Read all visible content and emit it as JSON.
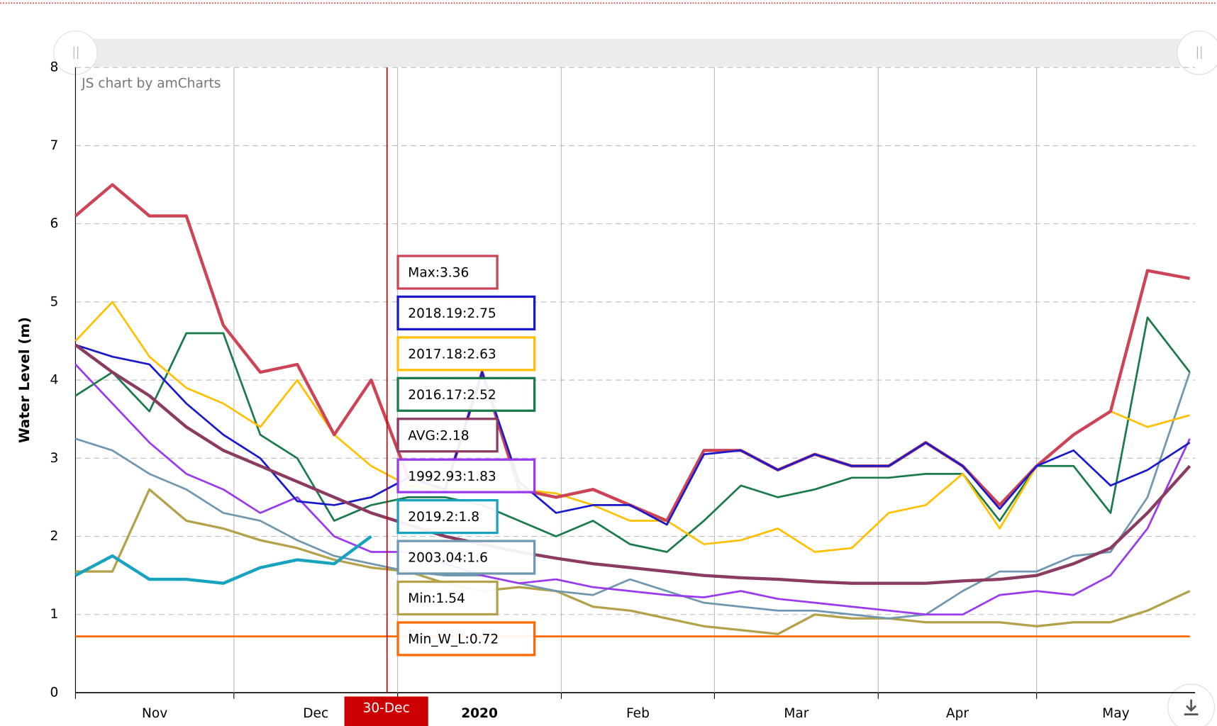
{
  "chart_data": {
    "type": "line",
    "credit": "JS chart by amCharts",
    "y_label": "Water Level (m)",
    "ylim": [
      0,
      8
    ],
    "yticks": [
      0,
      1,
      2,
      3,
      4,
      5,
      6,
      7,
      8
    ],
    "xlim": [
      0,
      212
    ],
    "xticks": [
      {
        "value": 0,
        "label": "Nov"
      },
      {
        "value": 30,
        "label": "Dec"
      },
      {
        "value": 61,
        "label": "2020"
      },
      {
        "value": 92,
        "label": "Feb"
      },
      {
        "value": 121,
        "label": "Mar"
      },
      {
        "value": 152,
        "label": "Apr"
      },
      {
        "value": 182,
        "label": "May"
      }
    ],
    "grid": true,
    "cursor": {
      "x": 59,
      "label": "30-Dec"
    },
    "x": [
      0,
      7,
      14,
      21,
      28,
      35,
      42,
      49,
      56,
      63,
      70,
      77,
      84,
      91,
      98,
      105,
      112,
      119,
      126,
      133,
      140,
      147,
      154,
      161,
      168,
      175,
      182,
      189,
      196,
      203,
      211
    ],
    "series": [
      {
        "name": "Min_W_L",
        "color": "#ff6a00",
        "width": 2.5,
        "balloon": "Min_W_L:0.72",
        "values": [
          0.72,
          0.72,
          0.72,
          0.72,
          0.72,
          0.72,
          0.72,
          0.72,
          0.72,
          0.72,
          0.72,
          0.72,
          0.72,
          0.72,
          0.72,
          0.72,
          0.72,
          0.72,
          0.72,
          0.72,
          0.72,
          0.72,
          0.72,
          0.72,
          0.72,
          0.72,
          0.72,
          0.72,
          0.72,
          0.72,
          0.72
        ]
      },
      {
        "name": "Min",
        "color": "#b3a24a",
        "width": 3,
        "balloon": "Min:1.54",
        "values": [
          1.55,
          1.55,
          2.6,
          2.2,
          2.1,
          1.95,
          1.85,
          1.7,
          1.6,
          1.55,
          1.4,
          1.3,
          1.35,
          1.3,
          1.1,
          1.05,
          0.95,
          0.85,
          0.8,
          0.75,
          1.0,
          0.95,
          0.95,
          0.9,
          0.9,
          0.9,
          0.85,
          0.9,
          0.9,
          1.05,
          1.3
        ]
      },
      {
        "name": "2003.04",
        "color": "#6f97b0",
        "width": 2.5,
        "balloon": "2003.04:1.6",
        "values": [
          3.25,
          3.1,
          2.8,
          2.6,
          2.3,
          2.2,
          1.95,
          1.75,
          1.65,
          1.55,
          1.5,
          1.5,
          1.4,
          1.3,
          1.25,
          1.45,
          1.3,
          1.15,
          1.1,
          1.05,
          1.05,
          1.0,
          0.95,
          1.0,
          1.3,
          1.55,
          1.55,
          1.75,
          1.8,
          2.5,
          4.1
        ]
      },
      {
        "name": "1992.93",
        "color": "#9a3aee",
        "width": 2.5,
        "balloon": "1992.93:1.83",
        "values": [
          4.2,
          3.7,
          3.2,
          2.8,
          2.6,
          2.3,
          2.5,
          2.0,
          1.8,
          1.8,
          1.65,
          1.5,
          1.4,
          1.45,
          1.35,
          1.3,
          1.25,
          1.22,
          1.3,
          1.2,
          1.15,
          1.1,
          1.05,
          1.0,
          1.0,
          1.25,
          1.3,
          1.25,
          1.5,
          2.1,
          3.25
        ]
      },
      {
        "name": "2016.17",
        "color": "#1a7a4a",
        "width": 2.5,
        "balloon": "2016.17:2.52",
        "values": [
          3.8,
          4.1,
          3.6,
          4.6,
          4.6,
          3.3,
          3.0,
          2.2,
          2.4,
          2.5,
          2.5,
          2.4,
          2.2,
          2.0,
          2.2,
          1.9,
          1.8,
          2.2,
          2.65,
          2.5,
          2.6,
          2.75,
          2.75,
          2.8,
          2.8,
          2.2,
          2.9,
          2.9,
          2.3,
          4.8,
          4.1
        ]
      },
      {
        "name": "2017.18",
        "color": "#ffc000",
        "width": 2.5,
        "balloon": "2017.18:2.63",
        "values": [
          4.5,
          5.0,
          4.3,
          3.9,
          3.7,
          3.4,
          4.0,
          3.3,
          2.9,
          2.65,
          2.6,
          2.6,
          2.6,
          2.55,
          2.4,
          2.2,
          2.2,
          1.9,
          1.95,
          2.1,
          1.8,
          1.85,
          2.3,
          2.4,
          2.8,
          2.1,
          2.9,
          3.3,
          3.6,
          3.4,
          3.55
        ]
      },
      {
        "name": "Max",
        "color": "#cc4455",
        "width": 4,
        "balloon": "Max:3.36",
        "values": [
          6.1,
          6.5,
          6.1,
          6.1,
          4.7,
          4.1,
          4.2,
          3.3,
          4.0,
          2.75,
          2.6,
          4.1,
          2.6,
          2.5,
          2.6,
          2.4,
          2.2,
          3.1,
          3.1,
          2.85,
          3.05,
          2.9,
          2.9,
          3.2,
          2.9,
          2.4,
          2.9,
          3.3,
          3.6,
          5.4,
          5.3
        ]
      },
      {
        "name": "2018.19",
        "color": "#1a1acc",
        "width": 2.5,
        "balloon": "2018.19:2.75",
        "values": [
          4.45,
          4.3,
          4.2,
          3.7,
          3.3,
          3.0,
          2.45,
          2.4,
          2.5,
          2.75,
          2.6,
          4.1,
          2.7,
          2.3,
          2.4,
          2.4,
          2.15,
          3.05,
          3.1,
          2.85,
          3.05,
          2.9,
          2.9,
          3.2,
          2.9,
          2.35,
          2.9,
          3.1,
          2.65,
          2.85,
          3.2
        ]
      },
      {
        "name": "AVG",
        "color": "#8b3a62",
        "width": 4,
        "balloon": "AVG:2.18",
        "values": [
          4.45,
          4.1,
          3.8,
          3.4,
          3.1,
          2.9,
          2.7,
          2.5,
          2.3,
          2.15,
          2.0,
          1.9,
          1.8,
          1.72,
          1.65,
          1.6,
          1.55,
          1.5,
          1.47,
          1.45,
          1.42,
          1.4,
          1.4,
          1.4,
          1.43,
          1.45,
          1.5,
          1.65,
          1.85,
          2.3,
          2.9
        ]
      },
      {
        "name": "2019.2",
        "color": "#17a2c0",
        "width": 4,
        "balloon": "2019.2:1.8",
        "values": [
          1.5,
          1.75,
          1.45,
          1.45,
          1.4,
          1.6,
          1.7,
          1.65,
          2.0,
          null,
          null,
          null,
          null,
          null,
          null,
          null,
          null,
          null,
          null,
          null,
          null,
          null,
          null,
          null,
          null,
          null,
          null,
          null,
          null,
          null,
          null
        ]
      }
    ],
    "balloon_order": [
      6,
      7,
      5,
      4,
      8,
      3,
      9,
      2,
      1,
      0
    ]
  }
}
